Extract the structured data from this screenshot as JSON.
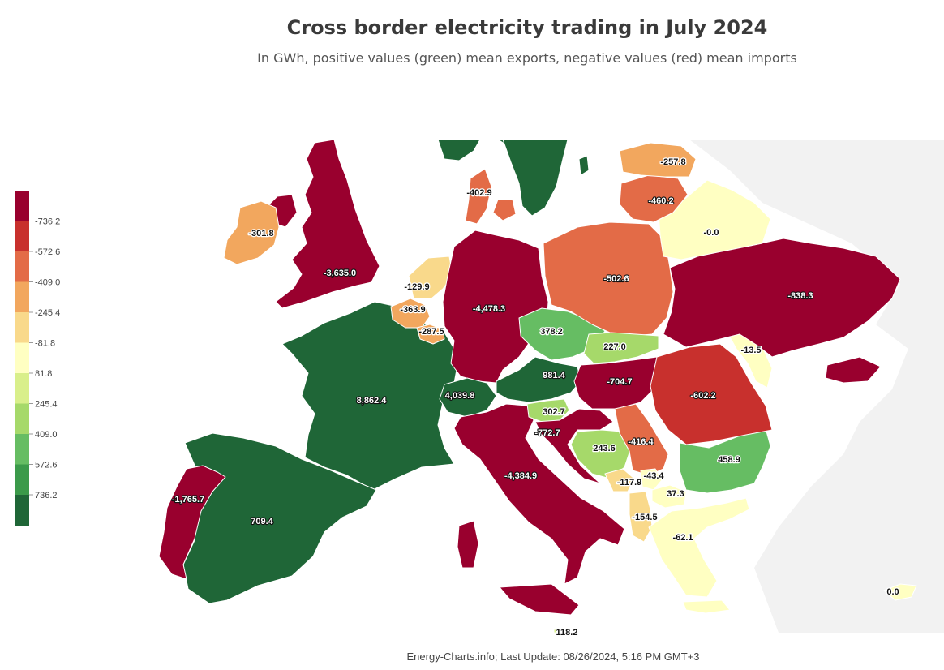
{
  "title": "Cross border electricity trading in July 2024",
  "subtitle": "In GWh, positive values (green) mean exports, negative values (red) mean imports",
  "footer": "Energy-Charts.info; Last Update: 08/26/2024, 5:16 PM GMT+3",
  "colors": {
    "scale": [
      "#99002e",
      "#c8302d",
      "#e36b47",
      "#f2a75e",
      "#f9d98b",
      "#ffffc2",
      "#d9ef8b",
      "#a6d96a",
      "#66bd63",
      "#3b9a4a",
      "#1f6637"
    ],
    "other_land": "#f2f2f2",
    "border": "#ffffff"
  },
  "legend": {
    "ticks": [
      "-736.2",
      "-572.6",
      "-409.0",
      "-245.4",
      "-81.8",
      "81.8",
      "245.4",
      "409.0",
      "572.6",
      "736.2"
    ]
  },
  "chart_data": {
    "type": "choropleth",
    "unit": "GWh",
    "title": "Cross border electricity trading in July 2024",
    "subtitle": "In GWh, positive values (green) mean exports, negative values (red) mean imports",
    "color_scale_range": [
      -818.0,
      818.0
    ],
    "regions": [
      {
        "name": "United Kingdom",
        "value": -3635.0,
        "label": "-3,635.0"
      },
      {
        "name": "Ireland",
        "value": -301.8,
        "label": "-301.8"
      },
      {
        "name": "France",
        "value": 8862.4,
        "label": "8,862.4"
      },
      {
        "name": "Spain",
        "value": 709.4,
        "label": "709.4"
      },
      {
        "name": "Portugal",
        "value": -1765.7,
        "label": "-1,765.7"
      },
      {
        "name": "Belgium",
        "value": -363.9,
        "label": "-363.9"
      },
      {
        "name": "Netherlands",
        "value": -129.9,
        "label": "-129.9"
      },
      {
        "name": "Luxembourg",
        "value": -287.5,
        "label": "-287.5"
      },
      {
        "name": "Germany",
        "value": -4478.3,
        "label": "-4,478.3"
      },
      {
        "name": "Denmark",
        "value": -402.9,
        "label": "-402.9"
      },
      {
        "name": "Switzerland",
        "value": 4039.8,
        "label": "4,039.8"
      },
      {
        "name": "Italy",
        "value": -4384.9,
        "label": "-4,384.9"
      },
      {
        "name": "Austria",
        "value": 981.4,
        "label": "981.4"
      },
      {
        "name": "Czech Republic",
        "value": 378.2,
        "label": "378.2"
      },
      {
        "name": "Poland",
        "value": -502.6,
        "label": "-502.6"
      },
      {
        "name": "Slovakia",
        "value": 227.0,
        "label": "227.0"
      },
      {
        "name": "Hungary",
        "value": -704.7,
        "label": "-704.7"
      },
      {
        "name": "Slovenia",
        "value": 302.7,
        "label": "302.7"
      },
      {
        "name": "Croatia",
        "value": -772.7,
        "label": "-772.7"
      },
      {
        "name": "Bosnia and Herzegovina",
        "value": 243.6,
        "label": "243.6"
      },
      {
        "name": "Serbia",
        "value": -416.4,
        "label": "-416.4"
      },
      {
        "name": "Montenegro",
        "value": -117.9,
        "label": "-117.9"
      },
      {
        "name": "Kosovo",
        "value": -43.4,
        "label": "-43.4"
      },
      {
        "name": "North Macedonia",
        "value": 37.3,
        "label": "37.3"
      },
      {
        "name": "Albania",
        "value": -154.5,
        "label": "-154.5"
      },
      {
        "name": "Greece",
        "value": -62.1,
        "label": "-62.1"
      },
      {
        "name": "Bulgaria",
        "value": 458.9,
        "label": "458.9"
      },
      {
        "name": "Romania",
        "value": -602.2,
        "label": "-602.2"
      },
      {
        "name": "Moldova",
        "value": -13.5,
        "label": "-13.5"
      },
      {
        "name": "Ukraine",
        "value": -838.3,
        "label": "-838.3"
      },
      {
        "name": "Belarus",
        "value": -0.0,
        "label": "-0.0"
      },
      {
        "name": "Lithuania",
        "value": -460.2,
        "label": "-460.2"
      },
      {
        "name": "Latvia",
        "value": -257.8,
        "label": "-257.8"
      },
      {
        "name": "Cyprus",
        "value": 0.0,
        "label": "0.0"
      },
      {
        "name": "Malta",
        "value": 118.2,
        "label": "118.2"
      },
      {
        "name": "Norway",
        "value": null,
        "label": ""
      },
      {
        "name": "Sweden",
        "value": null,
        "label": ""
      }
    ]
  }
}
